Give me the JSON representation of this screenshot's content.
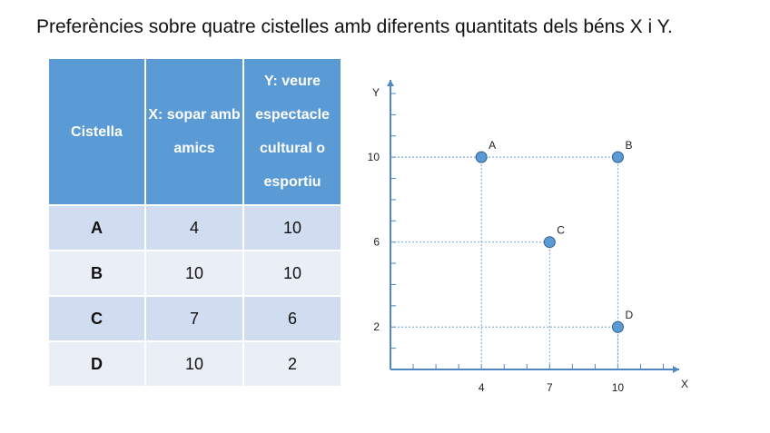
{
  "title": "Preferències sobre quatre cistelles amb diferents quantitats dels béns X i Y.",
  "table": {
    "headers": [
      "Cistella",
      "X: sopar amb amics",
      "Y: veure espectacle cultural o esportiu"
    ],
    "rows": [
      {
        "basket": "A",
        "x": "4",
        "y": "10"
      },
      {
        "basket": "B",
        "x": "10",
        "y": "10"
      },
      {
        "basket": "C",
        "x": "7",
        "y": "6"
      },
      {
        "basket": "D",
        "x": "10",
        "y": "2"
      }
    ]
  },
  "chart_data": {
    "type": "scatter",
    "xlabel": "X",
    "ylabel": "Y",
    "xlim": [
      0,
      12.8
    ],
    "ylim": [
      0,
      13.7
    ],
    "x_ticks": [
      4,
      7,
      10
    ],
    "y_ticks": [
      2,
      6,
      10
    ],
    "grid": false,
    "guide_lines": true,
    "points": [
      {
        "label": "A",
        "x": 4,
        "y": 10
      },
      {
        "label": "B",
        "x": 10,
        "y": 10
      },
      {
        "label": "C",
        "x": 7,
        "y": 6
      },
      {
        "label": "D",
        "x": 10,
        "y": 2
      }
    ],
    "colors": {
      "marker_fill": "#5b9bd5",
      "marker_stroke": "#2e5f8f",
      "axis": "#4f86c6",
      "guide": "#6fa0d8"
    }
  }
}
